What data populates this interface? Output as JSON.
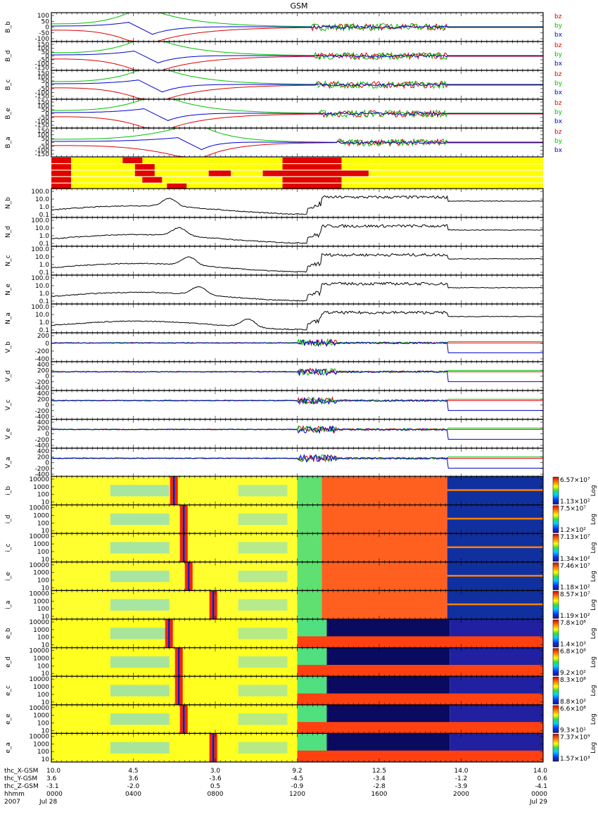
{
  "title": "GSM",
  "colors": {
    "bz": "#e00000",
    "by": "#00c000",
    "bx": "#0000d0",
    "flag_on": "#e00000",
    "flag_off": "#ffff00",
    "line": "#000000"
  },
  "chart_data": {
    "type": "line",
    "title": "GSM",
    "x_axis": {
      "start": "2007 Jul 28 0000",
      "end": "2007 Jul 29 0000",
      "ticks": [
        "0000",
        "0400",
        "0800",
        "1200",
        "1600",
        "2000",
        "0000"
      ]
    },
    "b_panels": [
      {
        "label": "B_b",
        "yticks": [
          "100",
          "50",
          "0",
          "-50",
          "-100"
        ],
        "ylim": [
          -100,
          100
        ],
        "legend": [
          "bz",
          "by",
          "bx"
        ]
      },
      {
        "label": "B_d",
        "yticks": [
          "150",
          "100",
          "50",
          "0",
          "-50",
          "-100",
          "-150"
        ],
        "ylim": [
          -150,
          150
        ],
        "legend": [
          "bz",
          "by",
          "bx"
        ]
      },
      {
        "label": "B_c",
        "yticks": [
          "150",
          "100",
          "50",
          "0",
          "-50",
          "-100",
          "-150"
        ],
        "ylim": [
          -150,
          150
        ],
        "legend": [
          "bz",
          "by",
          "bx"
        ]
      },
      {
        "label": "B_e",
        "yticks": [
          "150",
          "100",
          "50",
          "0",
          "-50",
          "-100",
          "-150"
        ],
        "ylim": [
          -150,
          150
        ],
        "legend": [
          "bz",
          "by",
          "bx"
        ]
      },
      {
        "label": "B_a",
        "yticks": [
          "150",
          "100",
          "50",
          "0",
          "-50",
          "-100",
          "-150"
        ],
        "ylim": [
          -150,
          150
        ],
        "legend": [
          "bz",
          "by",
          "bx"
        ]
      }
    ],
    "flag_rows": [
      {
        "on": [
          [
            0,
            0.04
          ],
          [
            0.145,
            0.185
          ],
          [
            0.47,
            0.59
          ]
        ]
      },
      {
        "on": [
          [
            0,
            0.04
          ],
          [
            0.17,
            0.21
          ],
          [
            0.47,
            0.59
          ]
        ]
      },
      {
        "on": [
          [
            0,
            0.04
          ],
          [
            0.17,
            0.21
          ],
          [
            0.32,
            0.365
          ],
          [
            0.43,
            0.645
          ]
        ]
      },
      {
        "on": [
          [
            0,
            0.04
          ],
          [
            0.185,
            0.225
          ],
          [
            0.47,
            0.59
          ]
        ]
      },
      {
        "on": [
          [
            0,
            0.04
          ],
          [
            0.235,
            0.275
          ],
          [
            0.47,
            0.59
          ]
        ]
      }
    ],
    "n_panels": [
      {
        "label": "N_b",
        "yticks": [
          "100.0",
          "10.0",
          "1.0",
          "0.1"
        ],
        "scale": "log"
      },
      {
        "label": "N_d",
        "yticks": [
          "100.0",
          "10.0",
          "1.0",
          "0.1"
        ],
        "scale": "log"
      },
      {
        "label": "N_c",
        "yticks": [
          "100.0",
          "10.0",
          "1.0",
          "0.1"
        ],
        "scale": "log"
      },
      {
        "label": "N_e",
        "yticks": [
          "100.0",
          "10.0",
          "1.0",
          "0.1"
        ],
        "scale": "log"
      },
      {
        "label": "N_a",
        "yticks": [
          "100.0",
          "10.0",
          "1.0",
          "0.1"
        ],
        "scale": "log"
      }
    ],
    "v_panels": [
      {
        "label": "V_b",
        "yticks": [
          "200",
          "0",
          "-200",
          "-400"
        ],
        "ylim": [
          -400,
          400
        ]
      },
      {
        "label": "V_d",
        "yticks": [
          "400",
          "200",
          "0",
          "-200",
          "-400"
        ],
        "ylim": [
          -400,
          400
        ]
      },
      {
        "label": "V_c",
        "yticks": [
          "400",
          "200",
          "0",
          "-200",
          "-400"
        ],
        "ylim": [
          -400,
          400
        ]
      },
      {
        "label": "V_e",
        "yticks": [
          "400",
          "200",
          "0",
          "-200",
          "-400"
        ],
        "ylim": [
          -400,
          400
        ]
      },
      {
        "label": "V_a",
        "yticks": [
          "400",
          "200",
          "0",
          "-200",
          "-400"
        ],
        "ylim": [
          -400,
          400
        ]
      }
    ],
    "spec_panels": [
      {
        "label": "i_b",
        "yticks": [
          "10000",
          "1000",
          "100",
          "10"
        ],
        "cmax": "6.57×10⁷",
        "cmin": "1.13×10²",
        "scale": "Log",
        "cross": 0.25
      },
      {
        "label": "i_d",
        "yticks": [
          "10000",
          "1000",
          "100",
          "10"
        ],
        "cmax": "7.5×10⁷",
        "cmin": "1.2×10²",
        "scale": "Log",
        "cross": 0.27
      },
      {
        "label": "i_c",
        "yticks": [
          "10000",
          "1000",
          "100",
          "10"
        ],
        "cmax": "7.13×10⁷",
        "cmin": "1.34×10²",
        "scale": "Log",
        "cross": 0.27
      },
      {
        "label": "i_e",
        "yticks": [
          "10000",
          "1000",
          "100",
          "10"
        ],
        "cmax": "7.46×10⁷",
        "cmin": "1.18×10²",
        "scale": "Log",
        "cross": 0.28
      },
      {
        "label": "i_a",
        "yticks": [
          "10000",
          "1000",
          "100",
          "10"
        ],
        "cmax": "8.57×10⁷",
        "cmin": "1.19×10²",
        "scale": "Log",
        "cross": 0.33
      },
      {
        "label": "e_b",
        "yticks": [
          "10000",
          "1000",
          "100",
          "10"
        ],
        "cmax": "7.8×10⁸",
        "cmin": "1.4×10³",
        "scale": "Log",
        "cross": 0.24
      },
      {
        "label": "e_d",
        "yticks": [
          "10000",
          "1000",
          "100",
          "10"
        ],
        "cmax": "6.8×10⁸",
        "cmin": "9.2×10²",
        "scale": "Log",
        "cross": 0.26
      },
      {
        "label": "e_c",
        "yticks": [
          "10000",
          "1000",
          "100",
          "10"
        ],
        "cmax": "8.3×10⁸",
        "cmin": "8.8×10²",
        "scale": "Log",
        "cross": 0.26
      },
      {
        "label": "e_e",
        "yticks": [
          "10000",
          "1000",
          "100",
          "10"
        ],
        "cmax": "6.6×10⁸",
        "cmin": "9.3×10¹",
        "scale": "Log",
        "cross": 0.27
      },
      {
        "label": "e_a",
        "yticks": [
          "10000",
          "1000",
          "100",
          "10"
        ],
        "cmax": "7.37×10⁹",
        "cmin": "1.57×10³",
        "scale": "Log",
        "cross": 0.33
      }
    ],
    "footer_labels": [
      "thc_X-GSM",
      "thc_Y-GSM",
      "thc_Z-GSM",
      "hhmm",
      "2007"
    ],
    "footer_first": [
      "10.0",
      "3.6",
      "-3.1",
      "0000",
      "Jul 28"
    ],
    "footer_cols": [
      [
        "4.5",
        "3.6",
        "-2.0",
        "0400",
        ""
      ],
      [
        "3.0",
        "-3.6",
        "0.5",
        "0800",
        ""
      ],
      [
        "9.2",
        "-4.5",
        "-0.9",
        "1200",
        ""
      ],
      [
        "12.5",
        "-3.4",
        "-2.8",
        "1600",
        ""
      ],
      [
        "14.0",
        "-1.2",
        "-3.9",
        "2000",
        ""
      ],
      [
        "14.0",
        "0.6",
        "-4.1",
        "0000",
        "Jul 29"
      ]
    ]
  }
}
